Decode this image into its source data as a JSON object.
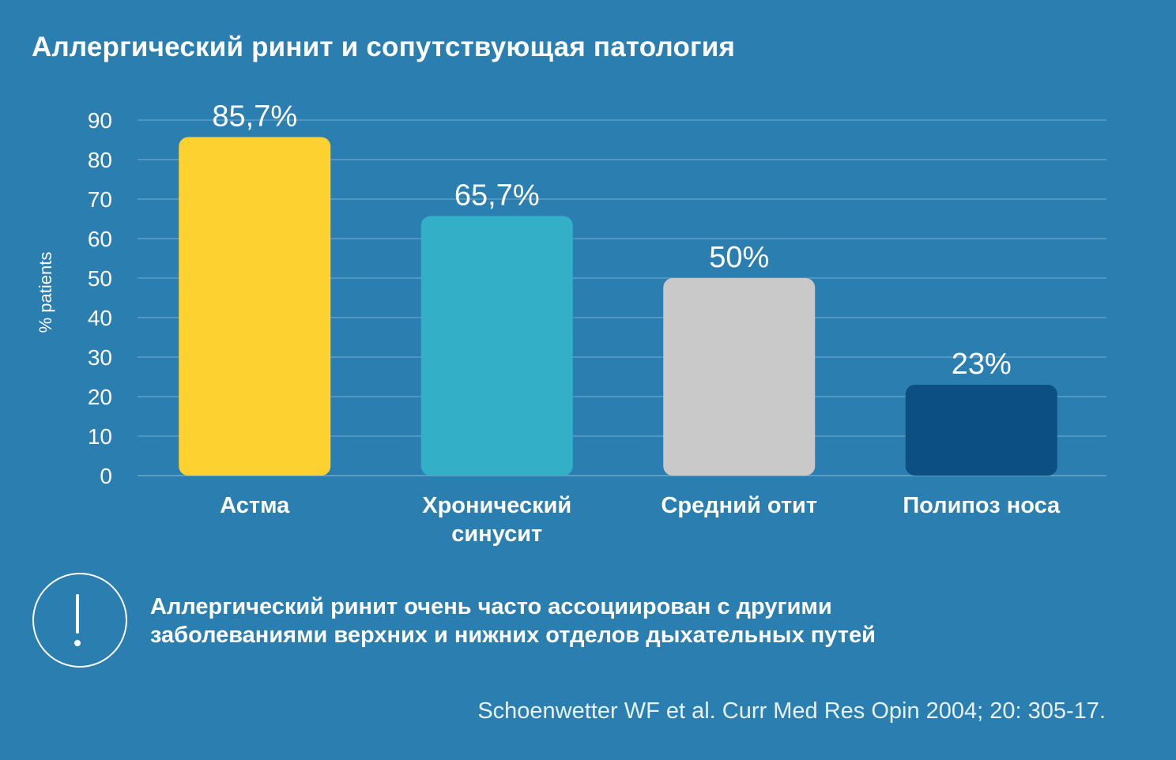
{
  "title": "Аллергический ринит и сопутствующая патология",
  "colors": {
    "background": "#2b7eb0",
    "grid": "#5d9dc5",
    "bars": [
      "#fdd130",
      "#33b0c8",
      "#c9c9c9",
      "#0c4f82"
    ]
  },
  "chart_data": {
    "type": "bar",
    "categories": [
      "Астма",
      "Хронический синусит",
      "Средний отит",
      "Полипоз носа"
    ],
    "category_lines": [
      [
        "Астма"
      ],
      [
        "Хронический",
        "синусит"
      ],
      [
        "Средний отит"
      ],
      [
        "Полипоз носа"
      ]
    ],
    "values": [
      85.7,
      65.7,
      50,
      23
    ],
    "value_labels": [
      "85,7%",
      "65,7%",
      "50%",
      "23%"
    ],
    "ylabel": "% patients",
    "ylim": [
      0,
      90
    ],
    "yticks": [
      0,
      10,
      20,
      30,
      40,
      50,
      60,
      70,
      80,
      90
    ],
    "grid": true,
    "legend": "none"
  },
  "note": {
    "icon": "exclamation-icon",
    "text_line1": "Аллергический ринит очень часто ассоциирован с другими",
    "text_line2": "заболеваниями верхних и нижних отделов дыхательных путей"
  },
  "source": "Schoenwetter WF et al. Curr Med Res Opin 2004; 20: 305-17."
}
